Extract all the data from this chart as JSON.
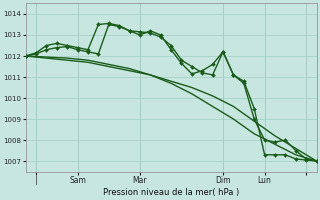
{
  "background_color": "#c8e6e0",
  "grid_color": "#a0ccc4",
  "line_color": "#1a5c1a",
  "xlabel_text": "Pression niveau de la mer( hPa )",
  "ylim": [
    1006.5,
    1014.5
  ],
  "xlim": [
    0,
    84
  ],
  "yticks": [
    1007,
    1008,
    1009,
    1010,
    1011,
    1012,
    1013,
    1014
  ],
  "xtick_positions": [
    3,
    15,
    33,
    57,
    69,
    81
  ],
  "xtick_labels": [
    "|",
    "Sam",
    "Mar",
    "Dim",
    "Lun",
    ""
  ],
  "vlines": [
    3,
    15,
    33,
    57,
    69,
    81
  ],
  "series": [
    {
      "x": [
        0,
        6,
        12,
        18,
        24,
        30,
        36,
        42,
        48,
        54,
        60,
        66,
        72,
        78,
        84
      ],
      "y": [
        1012.0,
        1011.9,
        1011.8,
        1011.7,
        1011.5,
        1011.3,
        1011.1,
        1010.8,
        1010.5,
        1010.1,
        1009.6,
        1008.9,
        1008.2,
        1007.6,
        1007.0
      ],
      "marker": null,
      "lw": 1.0
    },
    {
      "x": [
        0,
        6,
        12,
        18,
        24,
        30,
        36,
        42,
        48,
        54,
        60,
        66,
        72,
        78,
        84
      ],
      "y": [
        1012.0,
        1011.95,
        1011.9,
        1011.8,
        1011.6,
        1011.4,
        1011.1,
        1010.7,
        1010.2,
        1009.6,
        1009.0,
        1008.3,
        1007.8,
        1007.3,
        1007.0
      ],
      "marker": null,
      "lw": 1.0
    },
    {
      "x": [
        0,
        3,
        6,
        9,
        12,
        15,
        18,
        21,
        24,
        27,
        30,
        33,
        36,
        39,
        42,
        45,
        48,
        51,
        54,
        57,
        60,
        63,
        66,
        69,
        72,
        75,
        78,
        81,
        84
      ],
      "y": [
        1012.0,
        1012.1,
        1012.3,
        1012.4,
        1012.45,
        1012.3,
        1012.2,
        1012.1,
        1013.5,
        1013.4,
        1013.2,
        1013.15,
        1013.1,
        1012.9,
        1012.5,
        1011.8,
        1011.5,
        1011.2,
        1011.1,
        1012.2,
        1011.1,
        1010.8,
        1009.5,
        1007.3,
        1007.3,
        1007.3,
        1007.1,
        1007.05,
        1007.0
      ],
      "marker": "D",
      "lw": 1.0
    },
    {
      "x": [
        0,
        3,
        6,
        9,
        12,
        15,
        18,
        21,
        24,
        27,
        30,
        33,
        36,
        39,
        42,
        45,
        48,
        51,
        54,
        57,
        60,
        63,
        66,
        69,
        72,
        75,
        78,
        81,
        84
      ],
      "y": [
        1012.0,
        1012.15,
        1012.5,
        1012.6,
        1012.5,
        1012.4,
        1012.3,
        1013.5,
        1013.55,
        1013.45,
        1013.2,
        1013.0,
        1013.2,
        1013.0,
        1012.3,
        1011.65,
        1011.15,
        1011.3,
        1011.6,
        1012.2,
        1011.1,
        1010.7,
        1009.0,
        1008.0,
        1007.9,
        1008.0,
        1007.5,
        1007.1,
        1007.0
      ],
      "marker": "D",
      "lw": 1.0
    }
  ]
}
